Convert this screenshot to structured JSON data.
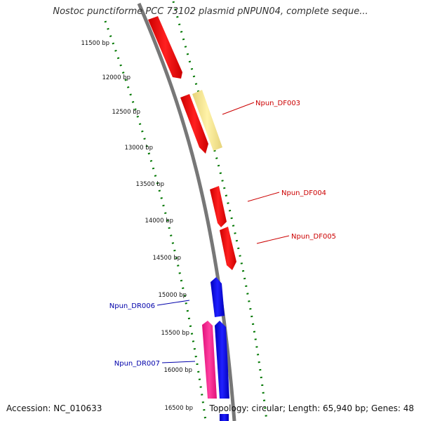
{
  "title": "Nostoc punctiforme PCC 73102 plasmid pNPUN04, complete seque...",
  "accession": "Accession: NC_010633",
  "stats": "Topology: circular; Length: 65,940 bp; Genes: 48",
  "colors": {
    "forward_gene": "#ff0000",
    "reverse_gene": "#0000ff",
    "highlight_gene": "#f0e68c",
    "rna_gene": "#ff1493",
    "backbone": "#888888",
    "tick": "#007700",
    "label_forward": "#cc0000",
    "label_reverse": "#0000aa"
  },
  "ruler": {
    "labels": [
      "11500 bp",
      "12000 bp",
      "12500 bp",
      "13000 bp",
      "13500 bp",
      "14000 bp",
      "14500 bp",
      "15000 bp",
      "15500 bp",
      "16000 bp",
      "16500 bp"
    ]
  },
  "genes": {
    "forward_labels": [
      "Npun_DF003",
      "Npun_DF004",
      "Npun_DF005"
    ],
    "reverse_labels": [
      "Npun_DR006",
      "Npun_DR007"
    ]
  }
}
